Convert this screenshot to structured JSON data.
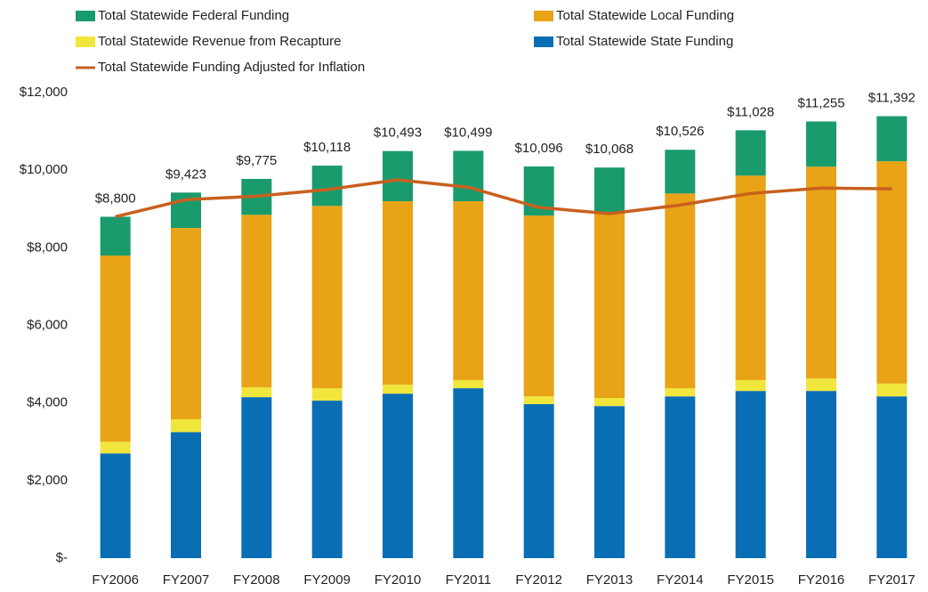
{
  "chart_data": {
    "type": "stacked-bar-line",
    "categories": [
      "FY2006",
      "FY2007",
      "FY2008",
      "FY2009",
      "FY2010",
      "FY2011",
      "FY2012",
      "FY2013",
      "FY2014",
      "FY2015",
      "FY2016",
      "FY2017"
    ],
    "series": [
      {
        "name": "Total Statewide State Funding",
        "color": "#0a6eb4",
        "kind": "bar",
        "values": [
          2700,
          3250,
          4150,
          4060,
          4240,
          4380,
          3970,
          3920,
          4170,
          4310,
          4310,
          4170
        ]
      },
      {
        "name": "Total Statewide Revenue from Recapture",
        "color": "#f0e63c",
        "kind": "bar",
        "values": [
          300,
          330,
          250,
          320,
          230,
          210,
          200,
          210,
          210,
          280,
          320,
          330
        ]
      },
      {
        "name": "Total Statewide Local Funding",
        "color": "#e8a317",
        "kind": "bar",
        "values": [
          4800,
          4930,
          4450,
          4700,
          4730,
          4610,
          4660,
          4750,
          5020,
          5270,
          5460,
          5730
        ]
      },
      {
        "name": "Total Statewide Federal Funding",
        "color": "#1a9b6c",
        "kind": "bar",
        "values": [
          1000,
          913,
          925,
          1038,
          1293,
          1299,
          1266,
          1188,
          1126,
          1168,
          1165,
          1162
        ]
      },
      {
        "name": "Total Statewide Funding Adjusted for Inflation",
        "color": "#c8601e",
        "kind": "line",
        "values": [
          8800,
          9240,
          9330,
          9500,
          9750,
          9560,
          9040,
          8880,
          9100,
          9400,
          9540,
          9520
        ]
      }
    ],
    "total_values": [
      8800,
      9423,
      9775,
      10118,
      10493,
      10499,
      10096,
      10068,
      10526,
      11028,
      11255,
      11392
    ],
    "total_labels": [
      "$8,800",
      "$9,423",
      "$9,775",
      "$10,118",
      "$10,493",
      "$10,499",
      "$10,096",
      "$10,068",
      "$10,526",
      "$11,028",
      "$11,255",
      "$11,392"
    ],
    "ylim": [
      0,
      12000
    ],
    "yticks": [
      {
        "value": 0,
        "label": "$-"
      },
      {
        "value": 2000,
        "label": "$2,000"
      },
      {
        "value": 4000,
        "label": "$4,000"
      },
      {
        "value": 6000,
        "label": "$6,000"
      },
      {
        "value": 8000,
        "label": "$8,000"
      },
      {
        "value": 10000,
        "label": "$10,000"
      },
      {
        "value": 12000,
        "label": "$12,000"
      }
    ],
    "grid": false
  }
}
